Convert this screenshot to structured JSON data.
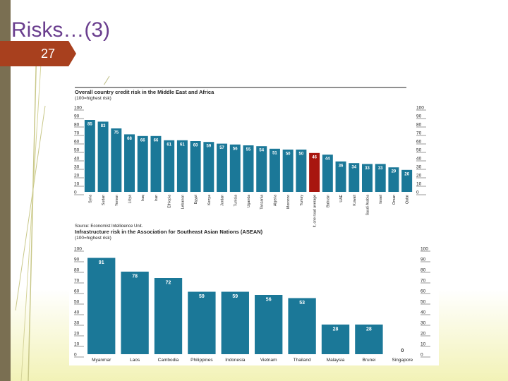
{
  "slide": {
    "title": "Risks…(3)",
    "page_number": "27"
  },
  "colors": {
    "bar": "#1b7898",
    "highlight_bar": "#a8160f",
    "title_color": "#6a3e8e",
    "page_tab": "#a8401e"
  },
  "chart_data": [
    {
      "type": "bar",
      "title": "Overall country credit risk in the Middle East and Africa",
      "subtitle": "(100=highest risk)",
      "source": "Source: Economist Intelligence Unit.",
      "categories": [
        "Syria",
        "Sudan",
        "Yemen",
        "Libya",
        "Iraq",
        "Iran",
        "Ethiopia",
        "Lebanon",
        "Egypt",
        "Kenya",
        "Jordan",
        "Tunisia",
        "Uganda",
        "Tanzania",
        "Algeria",
        "Morocco",
        "Turkey",
        "One belt, one road average",
        "Bahrain",
        "UAE",
        "Kuwait",
        "Saudi Arabia",
        "Israel",
        "Oman",
        "Qatar"
      ],
      "values": [
        85,
        83,
        75,
        68,
        66,
        66,
        61,
        61,
        60,
        59,
        57,
        56,
        55,
        54,
        51,
        50,
        50,
        46,
        44,
        36,
        34,
        33,
        33,
        29,
        26
      ],
      "highlight_index": 17,
      "ylim": [
        0,
        100
      ],
      "yticks": [
        0,
        10,
        20,
        30,
        40,
        50,
        60,
        70,
        80,
        90,
        100
      ]
    },
    {
      "type": "bar",
      "title": "Infrastructure risk in the Association for Southeast Asian Nations (ASEAN)",
      "subtitle": "(100=highest risk)",
      "categories": [
        "Myanmar",
        "Laos",
        "Cambodia",
        "Philippines",
        "Indonesia",
        "Vietnam",
        "Thailand",
        "Malaysia",
        "Brunei",
        "Singapore"
      ],
      "values": [
        91,
        78,
        72,
        59,
        59,
        56,
        53,
        28,
        28,
        0
      ],
      "ylim": [
        0,
        100
      ],
      "yticks": [
        0,
        10,
        20,
        30,
        40,
        50,
        60,
        70,
        80,
        90,
        100
      ]
    }
  ]
}
